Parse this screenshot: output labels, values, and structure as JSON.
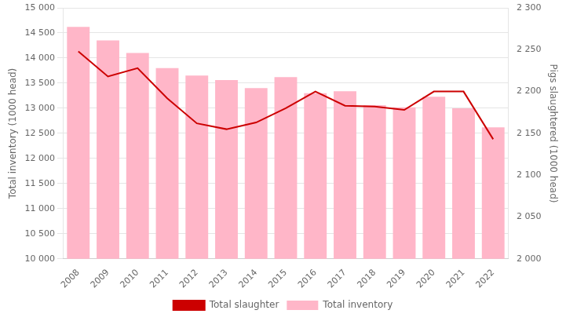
{
  "chart_data": {
    "type": "bar",
    "categories": [
      "2008",
      "2009",
      "2010",
      "2011",
      "2012",
      "2013",
      "2014",
      "2015",
      "2016",
      "2017",
      "2018",
      "2019",
      "2020",
      "2021",
      "2022"
    ],
    "series": [
      {
        "name": "Total inventory",
        "type": "bar",
        "color": "#FFB6C8",
        "values": [
          14620,
          14350,
          14100,
          13800,
          13650,
          13560,
          13400,
          13620,
          13300,
          13340,
          13060,
          13020,
          13230,
          13000,
          12620
        ]
      },
      {
        "name": "Total slaughter",
        "type": "line",
        "color": "#CC0000",
        "axis": "y2",
        "values": [
          2248,
          2218,
          2228,
          2192,
          2162,
          2155,
          2163,
          2180,
          2200,
          2183,
          2182,
          2178,
          2200,
          2200,
          2143
        ]
      }
    ],
    "ylabel": "Total inventory (1000 head)",
    "y2label": "Pigs slaughtered (1000 head)",
    "ylim": [
      10000,
      15000
    ],
    "yticks": [
      {
        "value": 10000,
        "label": "10 000"
      },
      {
        "value": 10500,
        "label": "10 500"
      },
      {
        "value": 11000,
        "label": "11 000"
      },
      {
        "value": 11500,
        "label": "11 500"
      },
      {
        "value": 12000,
        "label": "12 000"
      },
      {
        "value": 12500,
        "label": "12 500"
      },
      {
        "value": 13000,
        "label": "13 000"
      },
      {
        "value": 13500,
        "label": "13 500"
      },
      {
        "value": 14000,
        "label": "14 000"
      },
      {
        "value": 14500,
        "label": "14 500"
      },
      {
        "value": 15000,
        "label": "15 000"
      }
    ],
    "y2lim": [
      2000,
      2300
    ],
    "y2ticks": [
      {
        "value": 2000,
        "label": "2 000"
      },
      {
        "value": 2050,
        "label": "2 050"
      },
      {
        "value": 2100,
        "label": "2 100"
      },
      {
        "value": 2150,
        "label": "2 150"
      },
      {
        "value": 2200,
        "label": "2 200"
      },
      {
        "value": 2250,
        "label": "2 250"
      },
      {
        "value": 2300,
        "label": "2 300"
      }
    ],
    "grid": true,
    "legend": "bottom"
  }
}
